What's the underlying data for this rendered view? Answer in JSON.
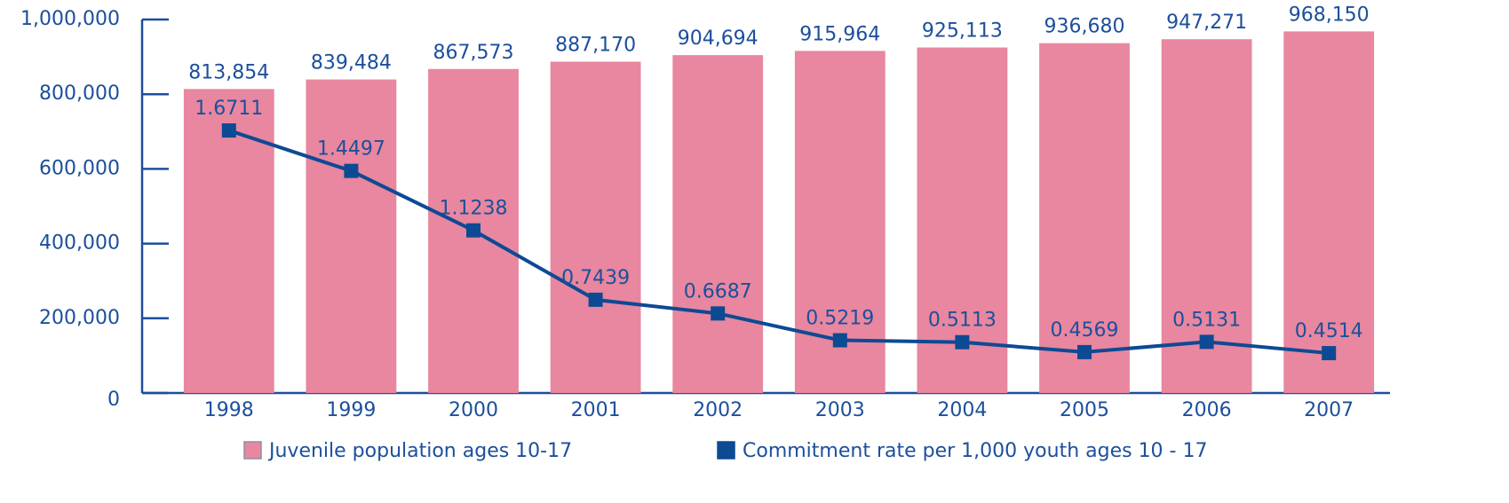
{
  "chart_data": {
    "type": "bar_line",
    "categories": [
      "1998",
      "1999",
      "2000",
      "2001",
      "2002",
      "2003",
      "2004",
      "2005",
      "2006",
      "2007"
    ],
    "series": [
      {
        "name": "Juvenile population ages 10-17",
        "color": "#e8879f",
        "type": "bar",
        "values": [
          813854,
          839484,
          867573,
          887170,
          904694,
          915964,
          925113,
          936680,
          947271,
          968150
        ],
        "value_labels": [
          "813,854",
          "839,484",
          "867,573",
          "887,170",
          "904,694",
          "915,964",
          "925,113",
          "936,680",
          "947,271",
          "968,150"
        ]
      },
      {
        "name": "Commitment rate per 1,000 youth ages 10 - 17",
        "color": "#0d4a94",
        "type": "line",
        "axis": "y2",
        "values": [
          1.6711,
          1.4497,
          1.1238,
          0.7439,
          0.6687,
          0.5219,
          0.5113,
          0.4569,
          0.5131,
          0.4514
        ]
      }
    ],
    "ylim": [
      0,
      1000000
    ],
    "yticks": [
      0,
      {
        "value": 200000,
        "label": "200,000"
      },
      {
        "value": 400000,
        "label": "400,000"
      },
      {
        "value": 600000,
        "label": "600,000"
      },
      {
        "value": 800000,
        "label": "800,000"
      },
      {
        "value": 1000000,
        "label": "1,000,000"
      }
    ],
    "y2lim": [
      0.233,
      2.279
    ],
    "grid": false,
    "legend": "bottom"
  }
}
